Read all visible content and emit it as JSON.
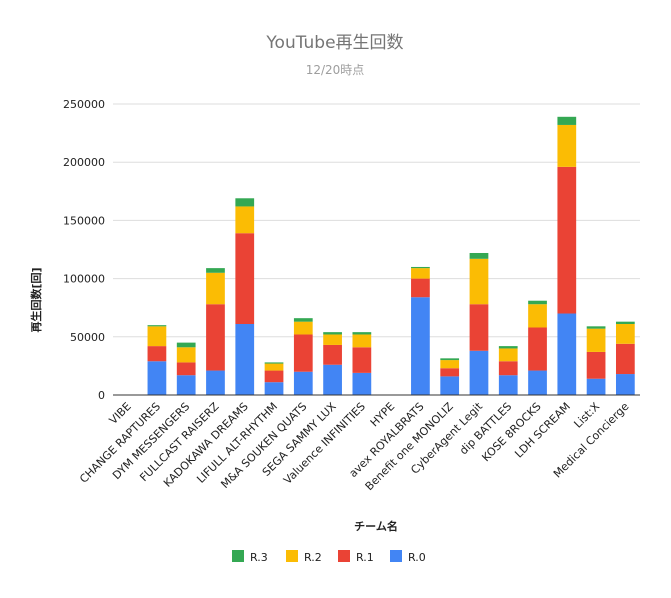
{
  "chart_data": {
    "type": "bar",
    "stacked": true,
    "title": "YouTube再生回数",
    "subtitle": "12/20時点",
    "xlabel": "チーム名",
    "ylabel": "再生回数[回]",
    "ylim": [
      0,
      250000
    ],
    "yticks": [
      "0",
      "50000",
      "100000",
      "150000",
      "200000",
      "250000"
    ],
    "grid": true,
    "legend_position": "bottom",
    "categories": [
      "VIBE",
      "CHANGE RAPTURES",
      "DYM MESSENGERS",
      "FULLCAST RAISERZ",
      "KADOKAWA DREAMS",
      "LIFULL ALT-RHYTHM",
      "M&A SOUKEN QUATS",
      "SEGA SAMMY LUX",
      "Valuence INFINITIES",
      "HYPE",
      "avex ROYALBRATS",
      "Benefit one MONOLIZ",
      "CyberAgent Legit",
      "dip BATTLES",
      "KOSE 8ROCKS",
      "LDH SCREAM",
      "List:X",
      "Medical Concierge"
    ],
    "series": [
      {
        "name": "R.0",
        "color": "#4285f4",
        "values": [
          0,
          29000,
          17000,
          21000,
          61000,
          11000,
          20000,
          26000,
          19000,
          0,
          84000,
          16000,
          38000,
          17000,
          21000,
          70000,
          14000,
          18000
        ]
      },
      {
        "name": "R.1",
        "color": "#ea4335",
        "values": [
          0,
          13000,
          11000,
          57000,
          78000,
          10000,
          32000,
          17000,
          22000,
          0,
          16000,
          7000,
          40000,
          12000,
          37000,
          126000,
          23000,
          26000
        ]
      },
      {
        "name": "R.2",
        "color": "#fbbc04",
        "values": [
          0,
          17000,
          13000,
          27000,
          23000,
          6000,
          11000,
          9000,
          11000,
          0,
          9000,
          7000,
          39000,
          11000,
          20000,
          36000,
          20000,
          17000
        ]
      },
      {
        "name": "R.3",
        "color": "#34a853",
        "values": [
          0,
          1000,
          4000,
          4000,
          7000,
          1000,
          3000,
          2000,
          2000,
          0,
          1000,
          1500,
          5000,
          2000,
          3000,
          7000,
          2000,
          2000
        ]
      }
    ]
  }
}
